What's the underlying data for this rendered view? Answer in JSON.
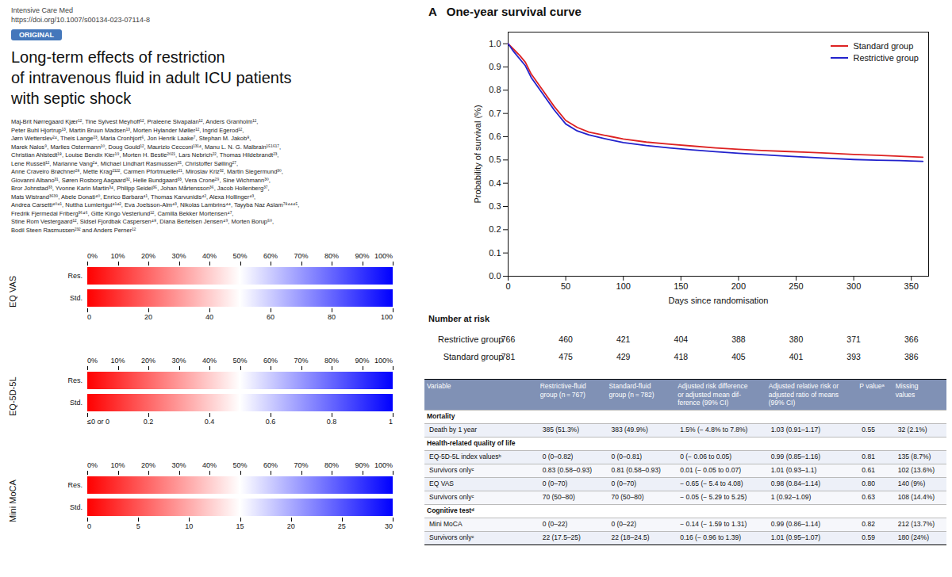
{
  "chart_data": [
    {
      "type": "text",
      "title": "Long-term effects of restriction\nof intravenous fluid in adult ICU patients\nwith septic shock",
      "color": "#4477bb",
      "annotations": [
        "Intensive Care Med",
        "https://doi.org/10.1007/s00134-023-07114-8",
        "ORIGINAL",
        "Maj-Brit Nørregaard Kjær¹², Tine Sylvest Meyhoff¹², Praleene Sivapalan¹², Anders Granholm¹²,\nPeter Buhl Hjortrup¹³, Martin Bruun Madsen¹³, Morten Hylander Møller¹², Ingrid Egerod¹²,\nJørn Wetterslev²⁴, Theis Lange²³, Maria Cronhjort⁶, Jon Henrik Laake⁷, Stephan M. Jakob⁸,\nMarek Nalos⁹, Marlies Ostermann¹⁰, Doug Gould¹², Maurizio Cecconi¹³¹⁴, Manu L. N. G. Malbrain¹⁵¹⁶¹⁷,\nChristian Ahlstedt¹⁸, Louise Bendix Kier¹⁹, Morten H. Bestle²⁰²¹, Lars Nebrich²², Thomas Hildebrandt²³,\nLene Russell¹², Marianne Vang²⁴, Michael Lindhart Rasmussen²⁵, Christoffer Sølling²⁷,\nAnne Craveiro Brøchner²⁸, Mette Krag²¹²², Carmen Pfortmueller²¹, Miroslav Kriz³², Martin Siegermund³⁰,\nGiovanni Albano³¹, Søren Rosborg Aagaard³², Helle Bundgaard³³, Vera Crone²⁹, Sine Wichmann³⁰,\nBror Johnstad³³, Yvonne Karin Martin³⁴, Philipp Seidel³⁵, Johan Mårtensson³⁶, Jacob Hollenberg³⁷,\nMats Wistrand³⁶³⁹, Abele Donati⁴⁰, Enrico Barbara⁴¹, Thomas Karvunidis⁴², Alexa Hollinger⁴³,\nAndrea Carsetti⁴⁰⁴¹, Nuttha Lumlertgul⁴¹⁴², Eva Joelsson-Alm⁴³, Nikolas Lambrins⁴⁴, Tayyba Naz Aslam⁷⁸⁴⁴⁴⁵,\nFredrik Fjermedal Friberg³⁶⁴⁶, Gitte Kingo Vesterlund¹², Camilla Bekker Mortensen⁴⁷,\nStine Rom Vestergaard¹², Sidsel Fjordbak Caspersen⁴⁸, Diana Bertelsen Jensen⁴⁹, Morten Borup⁵⁰,\nBodil Steen Rasmussen²³² and Anders Perner¹²"
      ]
    },
    {
      "type": "line",
      "title": "A   One-year survival curve",
      "xlabel": "Days since randomisation",
      "ylabel": "Probability of survival (%)",
      "x": [
        0,
        5,
        10,
        15,
        20,
        30,
        40,
        50,
        60,
        70,
        80,
        90,
        100,
        120,
        140,
        160,
        180,
        200,
        220,
        240,
        260,
        280,
        300,
        320,
        340,
        360
      ],
      "series": [
        {
          "name": "Standard group",
          "color": "#dd2222",
          "values": [
            1.0,
            0.975,
            0.95,
            0.92,
            0.87,
            0.8,
            0.73,
            0.67,
            0.64,
            0.62,
            0.61,
            0.6,
            0.59,
            0.577,
            0.568,
            0.56,
            0.552,
            0.546,
            0.541,
            0.537,
            0.533,
            0.529,
            0.524,
            0.52,
            0.516,
            0.512
          ]
        },
        {
          "name": "Restrictive group",
          "color": "#2222cc",
          "values": [
            1.0,
            0.965,
            0.935,
            0.905,
            0.855,
            0.785,
            0.715,
            0.655,
            0.625,
            0.608,
            0.596,
            0.585,
            0.575,
            0.562,
            0.552,
            0.543,
            0.536,
            0.529,
            0.523,
            0.517,
            0.512,
            0.507,
            0.502,
            0.499,
            0.497,
            0.494
          ]
        }
      ],
      "xlim": [
        0,
        365
      ],
      "xticks": [
        0,
        50,
        100,
        150,
        200,
        250,
        300,
        350
      ],
      "ylim": [
        0.0,
        1.05
      ],
      "yticks": [
        {
          "value": 0,
          "label": "0.0"
        },
        0.1,
        0.2,
        0.3,
        0.4,
        0.5,
        0.6,
        0.7,
        0.8,
        0.9,
        {
          "value": 1,
          "label": "1.0"
        }
      ],
      "grid": false,
      "legend": "upper right",
      "risk_table": {
        "title": "Number at risk",
        "x": [
          0,
          50,
          100,
          150,
          200,
          250,
          300,
          350
        ],
        "rows": [
          {
            "name": "Restrictive group",
            "values": [
              766,
              460,
              421,
              404,
              388,
              380,
              371,
              366
            ]
          },
          {
            "name": "Standard group",
            "values": [
              781,
              475,
              429,
              418,
              405,
              401,
              393,
              386
            ]
          }
        ]
      }
    },
    {
      "type": "gradient_bar",
      "colors": [
        "#ff0000",
        "#ffffff",
        "#0000ff"
      ],
      "rows": [
        "Res.",
        "Std."
      ],
      "panels": [
        {
          "title": "EQ VAS",
          "xlim": [
            0,
            100
          ],
          "xticks": [
            {
              "value": 0,
              "label": "0%"
            },
            {
              "value": 10,
              "label": "10%"
            },
            {
              "value": 20,
              "label": "20%"
            },
            {
              "value": 30,
              "label": "30%"
            },
            {
              "value": 40,
              "label": "40%"
            },
            {
              "value": 50,
              "label": "50%"
            },
            {
              "value": 60,
              "label": "60%"
            },
            {
              "value": 70,
              "label": "70%"
            },
            {
              "value": 80,
              "label": "80%"
            },
            {
              "value": 90,
              "label": "90%"
            },
            {
              "value": 100,
              "label": "100%"
            }
          ],
          "x2lim": [
            0,
            100
          ],
          "x2ticks": [
            0,
            20,
            40,
            60,
            80,
            100
          ]
        },
        {
          "title": "EQ-5D-5L",
          "xlim": [
            0,
            100
          ],
          "xticks": [
            {
              "value": 0,
              "label": "0%"
            },
            {
              "value": 10,
              "label": "10%"
            },
            {
              "value": 20,
              "label": "20%"
            },
            {
              "value": 30,
              "label": "30%"
            },
            {
              "value": 40,
              "label": "40%"
            },
            {
              "value": 50,
              "label": "50%"
            },
            {
              "value": 60,
              "label": "60%"
            },
            {
              "value": 70,
              "label": "70%"
            },
            {
              "value": 80,
              "label": "80%"
            },
            {
              "value": 90,
              "label": "90%"
            },
            {
              "value": 100,
              "label": "100%"
            }
          ],
          "x2lim": [
            0,
            1
          ],
          "x2ticks": [
            {
              "value": 0,
              "label": "≤0 or 0"
            },
            0.2,
            0.4,
            0.6,
            0.8,
            1
          ]
        },
        {
          "title": "Mini MoCA",
          "xlim": [
            0,
            100
          ],
          "xticks": [
            {
              "value": 0,
              "label": "0%"
            },
            {
              "value": 10,
              "label": "10%"
            },
            {
              "value": 20,
              "label": "20%"
            },
            {
              "value": 30,
              "label": "30%"
            },
            {
              "value": 40,
              "label": "40%"
            },
            {
              "value": 50,
              "label": "50%"
            },
            {
              "value": 60,
              "label": "60%"
            },
            {
              "value": 70,
              "label": "70%"
            },
            {
              "value": 80,
              "label": "80%"
            },
            {
              "value": 90,
              "label": "90%"
            },
            {
              "value": 100,
              "label": "100%"
            }
          ],
          "x2lim": [
            0,
            30
          ],
          "x2ticks": [
            0,
            5,
            10,
            15,
            20,
            25,
            30
          ]
        }
      ]
    },
    {
      "type": "table",
      "color": "#8091b5",
      "columns": [
        "Variable",
        "Restrictive-fluid\ngroup (n = 767)",
        "Standard-fluid\ngroup (n = 782)",
        "Adjusted risk difference\nor adjusted mean dif-\nference (99% CI)",
        "Adjusted relative risk or\nadjusted ratio of means\n(99% CI)",
        "P valueᵃ",
        "Missing\nvalues"
      ],
      "rows": [
        [
          "Mortality",
          null,
          null,
          null,
          null,
          null,
          null
        ],
        [
          "Death by 1 year",
          "385 (51.3%)",
          "383 (49.9%)",
          "1.5% (− 4.8% to 7.8%)",
          "1.03 (0.91–1.17)",
          "0.55",
          "32 (2.1%)"
        ],
        [
          "Health-related quality of life",
          null,
          null,
          null,
          null,
          null,
          null
        ],
        [
          "EQ-5D-5L index valuesᵇ",
          "0 (0–0.82)",
          "0 (0–0.81)",
          "0 (− 0.06 to 0.05)",
          "0.99 (0.85–1.16)",
          "0.81",
          "135 (8.7%)"
        ],
        [
          "Survivors onlyᶜ",
          "0.83 (0.58–0.93)",
          "0.81 (0.58–0.93)",
          "0.01 (− 0.05 to 0.07)",
          "1.01 (0.93–1.1)",
          "0.61",
          "102 (13.6%)"
        ],
        [
          "EQ VAS",
          "0 (0–70)",
          "0 (0–70)",
          "− 0.65 (− 5.4 to 4.08)",
          "0.98 (0.84–1.14)",
          "0.80",
          "140 (9%)"
        ],
        [
          "Survivors onlyᶜ",
          "70 (50–80)",
          "70 (50–80)",
          "− 0.05 (− 5.29 to 5.25)",
          "1 (0.92–1.09)",
          "0.63",
          "108 (14.4%)"
        ],
        [
          "Cognitive testᵈ",
          null,
          null,
          null,
          null,
          null,
          null
        ],
        [
          "Mini MoCA",
          "0 (0–22)",
          "0 (0–22)",
          "− 0.14 (− 1.59 to 1.31)",
          "0.99 (0.86–1.14)",
          "0.82",
          "212 (13.7%)"
        ],
        [
          "Survivors onlyᶜ",
          "22 (17.5–25)",
          "22 (18–24.5)",
          "0.16 (− 0.96 to 1.39)",
          "1.01 (0.95–1.07)",
          "0.59",
          "180 (24%)"
        ]
      ]
    }
  ]
}
